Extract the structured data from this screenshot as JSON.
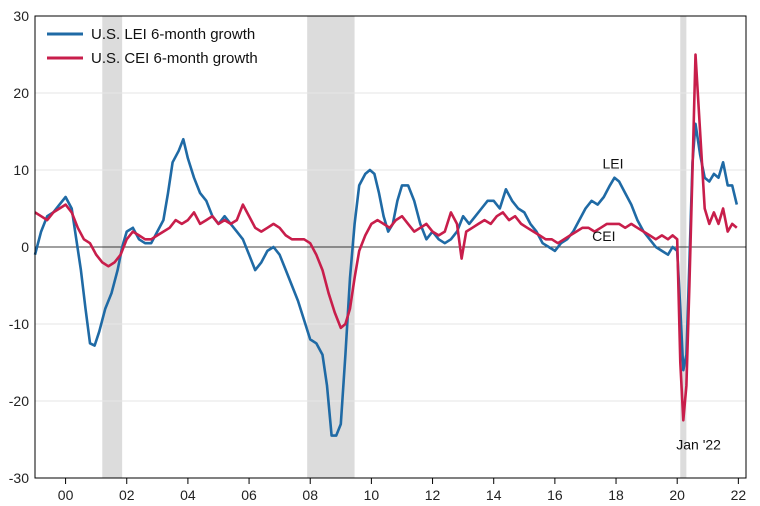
{
  "chart_data": {
    "type": "line",
    "title": "",
    "xlabel": "",
    "ylabel": "",
    "ylim": [
      -30,
      30
    ],
    "xlim": [
      1999.0,
      2022.25
    ],
    "y_ticks": [
      -30,
      -20,
      -10,
      0,
      10,
      20,
      30
    ],
    "y_tick_labels": [
      "-30",
      "-20",
      "-10",
      "0",
      "10",
      "20",
      "30"
    ],
    "x_ticks": [
      2000,
      2002,
      2004,
      2006,
      2008,
      2010,
      2012,
      2014,
      2016,
      2018,
      2020,
      2022
    ],
    "x_tick_labels": [
      "00",
      "02",
      "04",
      "06",
      "08",
      "10",
      "12",
      "14",
      "16",
      "18",
      "20",
      "22"
    ],
    "grid": "horizontal",
    "legend_position": "top-left",
    "recessions": [
      [
        2001.2,
        2001.85
      ],
      [
        2007.9,
        2009.45
      ],
      [
        2020.1,
        2020.3
      ]
    ],
    "series": [
      {
        "name": "U.S. LEI 6-month growth",
        "color": "#1f6aa5",
        "label": "LEI",
        "points": [
          [
            1999.0,
            -1.0
          ],
          [
            1999.2,
            2.0
          ],
          [
            1999.4,
            4.0
          ],
          [
            1999.6,
            4.5
          ],
          [
            1999.8,
            5.5
          ],
          [
            2000.0,
            6.5
          ],
          [
            2000.2,
            5.0
          ],
          [
            2000.35,
            1.0
          ],
          [
            2000.5,
            -3.0
          ],
          [
            2000.65,
            -8.0
          ],
          [
            2000.8,
            -12.5
          ],
          [
            2000.95,
            -12.8
          ],
          [
            2001.1,
            -11.0
          ],
          [
            2001.3,
            -8.0
          ],
          [
            2001.5,
            -6.0
          ],
          [
            2001.7,
            -3.0
          ],
          [
            2001.85,
            0.0
          ],
          [
            2002.0,
            2.0
          ],
          [
            2002.2,
            2.5
          ],
          [
            2002.4,
            1.0
          ],
          [
            2002.6,
            0.5
          ],
          [
            2002.8,
            0.5
          ],
          [
            2003.0,
            2.0
          ],
          [
            2003.2,
            3.5
          ],
          [
            2003.35,
            7.0
          ],
          [
            2003.5,
            11.0
          ],
          [
            2003.7,
            12.5
          ],
          [
            2003.85,
            14.0
          ],
          [
            2004.0,
            11.5
          ],
          [
            2004.2,
            9.0
          ],
          [
            2004.4,
            7.0
          ],
          [
            2004.6,
            6.0
          ],
          [
            2004.8,
            4.0
          ],
          [
            2005.0,
            3.0
          ],
          [
            2005.2,
            4.0
          ],
          [
            2005.4,
            3.0
          ],
          [
            2005.6,
            2.0
          ],
          [
            2005.8,
            1.0
          ],
          [
            2006.0,
            -1.0
          ],
          [
            2006.2,
            -3.0
          ],
          [
            2006.4,
            -2.0
          ],
          [
            2006.6,
            -0.5
          ],
          [
            2006.8,
            0.0
          ],
          [
            2007.0,
            -1.0
          ],
          [
            2007.2,
            -3.0
          ],
          [
            2007.4,
            -5.0
          ],
          [
            2007.6,
            -7.0
          ],
          [
            2007.8,
            -9.5
          ],
          [
            2008.0,
            -12.0
          ],
          [
            2008.2,
            -12.5
          ],
          [
            2008.4,
            -14.0
          ],
          [
            2008.55,
            -18.0
          ],
          [
            2008.7,
            -24.5
          ],
          [
            2008.85,
            -24.5
          ],
          [
            2009.0,
            -23.0
          ],
          [
            2009.15,
            -14.0
          ],
          [
            2009.3,
            -4.0
          ],
          [
            2009.45,
            3.0
          ],
          [
            2009.6,
            8.0
          ],
          [
            2009.8,
            9.5
          ],
          [
            2009.95,
            10.0
          ],
          [
            2010.1,
            9.5
          ],
          [
            2010.25,
            7.0
          ],
          [
            2010.4,
            4.0
          ],
          [
            2010.55,
            2.0
          ],
          [
            2010.7,
            3.0
          ],
          [
            2010.85,
            6.0
          ],
          [
            2011.0,
            8.0
          ],
          [
            2011.2,
            8.0
          ],
          [
            2011.4,
            6.0
          ],
          [
            2011.6,
            3.0
          ],
          [
            2011.8,
            1.0
          ],
          [
            2012.0,
            2.0
          ],
          [
            2012.2,
            1.0
          ],
          [
            2012.4,
            0.5
          ],
          [
            2012.6,
            1.0
          ],
          [
            2012.8,
            2.0
          ],
          [
            2013.0,
            4.0
          ],
          [
            2013.2,
            3.0
          ],
          [
            2013.4,
            4.0
          ],
          [
            2013.6,
            5.0
          ],
          [
            2013.8,
            6.0
          ],
          [
            2014.0,
            6.0
          ],
          [
            2014.2,
            5.0
          ],
          [
            2014.4,
            7.5
          ],
          [
            2014.6,
            6.0
          ],
          [
            2014.8,
            5.0
          ],
          [
            2015.0,
            4.5
          ],
          [
            2015.2,
            3.0
          ],
          [
            2015.4,
            2.0
          ],
          [
            2015.6,
            0.5
          ],
          [
            2015.8,
            0.0
          ],
          [
            2016.0,
            -0.5
          ],
          [
            2016.2,
            0.5
          ],
          [
            2016.4,
            1.0
          ],
          [
            2016.6,
            2.0
          ],
          [
            2016.8,
            3.5
          ],
          [
            2017.0,
            5.0
          ],
          [
            2017.2,
            6.0
          ],
          [
            2017.4,
            5.5
          ],
          [
            2017.6,
            6.5
          ],
          [
            2017.8,
            8.0
          ],
          [
            2017.95,
            9.0
          ],
          [
            2018.1,
            8.5
          ],
          [
            2018.3,
            7.0
          ],
          [
            2018.5,
            5.5
          ],
          [
            2018.7,
            3.5
          ],
          [
            2018.9,
            2.0
          ],
          [
            2019.1,
            1.0
          ],
          [
            2019.3,
            0.0
          ],
          [
            2019.5,
            -0.5
          ],
          [
            2019.7,
            -1.0
          ],
          [
            2019.85,
            0.0
          ],
          [
            2020.0,
            -0.5
          ],
          [
            2020.1,
            -8.0
          ],
          [
            2020.2,
            -16.0
          ],
          [
            2020.3,
            -14.0
          ],
          [
            2020.4,
            -2.0
          ],
          [
            2020.5,
            11.0
          ],
          [
            2020.6,
            16.0
          ],
          [
            2020.75,
            12.0
          ],
          [
            2020.9,
            9.0
          ],
          [
            2021.05,
            8.5
          ],
          [
            2021.2,
            9.5
          ],
          [
            2021.35,
            9.0
          ],
          [
            2021.5,
            11.0
          ],
          [
            2021.65,
            8.0
          ],
          [
            2021.8,
            8.0
          ],
          [
            2021.95,
            5.5
          ]
        ]
      },
      {
        "name": "U.S. CEI 6-month growth",
        "color": "#c81e4b",
        "label": "CEI",
        "points": [
          [
            1999.0,
            4.5
          ],
          [
            1999.2,
            4.0
          ],
          [
            1999.4,
            3.5
          ],
          [
            1999.6,
            4.5
          ],
          [
            1999.8,
            5.0
          ],
          [
            2000.0,
            5.5
          ],
          [
            2000.2,
            4.5
          ],
          [
            2000.4,
            2.5
          ],
          [
            2000.6,
            1.0
          ],
          [
            2000.8,
            0.5
          ],
          [
            2001.0,
            -1.0
          ],
          [
            2001.2,
            -2.0
          ],
          [
            2001.4,
            -2.5
          ],
          [
            2001.6,
            -2.0
          ],
          [
            2001.8,
            -1.0
          ],
          [
            2002.0,
            1.0
          ],
          [
            2002.2,
            2.0
          ],
          [
            2002.4,
            1.5
          ],
          [
            2002.6,
            1.0
          ],
          [
            2002.8,
            1.0
          ],
          [
            2003.0,
            1.5
          ],
          [
            2003.2,
            2.0
          ],
          [
            2003.4,
            2.5
          ],
          [
            2003.6,
            3.5
          ],
          [
            2003.8,
            3.0
          ],
          [
            2004.0,
            3.5
          ],
          [
            2004.2,
            4.5
          ],
          [
            2004.4,
            3.0
          ],
          [
            2004.6,
            3.5
          ],
          [
            2004.8,
            4.0
          ],
          [
            2005.0,
            3.0
          ],
          [
            2005.2,
            3.5
          ],
          [
            2005.4,
            3.0
          ],
          [
            2005.6,
            3.5
          ],
          [
            2005.8,
            5.5
          ],
          [
            2006.0,
            4.0
          ],
          [
            2006.2,
            2.5
          ],
          [
            2006.4,
            2.0
          ],
          [
            2006.6,
            2.5
          ],
          [
            2006.8,
            3.0
          ],
          [
            2007.0,
            2.5
          ],
          [
            2007.2,
            1.5
          ],
          [
            2007.4,
            1.0
          ],
          [
            2007.6,
            1.0
          ],
          [
            2007.8,
            1.0
          ],
          [
            2008.0,
            0.5
          ],
          [
            2008.2,
            -1.0
          ],
          [
            2008.4,
            -3.0
          ],
          [
            2008.6,
            -6.0
          ],
          [
            2008.8,
            -8.5
          ],
          [
            2009.0,
            -10.5
          ],
          [
            2009.15,
            -10.0
          ],
          [
            2009.3,
            -8.0
          ],
          [
            2009.45,
            -4.0
          ],
          [
            2009.6,
            -0.5
          ],
          [
            2009.8,
            1.5
          ],
          [
            2010.0,
            3.0
          ],
          [
            2010.2,
            3.5
          ],
          [
            2010.4,
            3.0
          ],
          [
            2010.6,
            2.5
          ],
          [
            2010.8,
            3.5
          ],
          [
            2011.0,
            4.0
          ],
          [
            2011.2,
            3.0
          ],
          [
            2011.4,
            2.0
          ],
          [
            2011.6,
            2.5
          ],
          [
            2011.8,
            3.0
          ],
          [
            2012.0,
            2.0
          ],
          [
            2012.2,
            1.5
          ],
          [
            2012.4,
            2.0
          ],
          [
            2012.6,
            4.5
          ],
          [
            2012.8,
            3.0
          ],
          [
            2012.95,
            -1.5
          ],
          [
            2013.1,
            2.0
          ],
          [
            2013.3,
            2.5
          ],
          [
            2013.5,
            3.0
          ],
          [
            2013.7,
            3.5
          ],
          [
            2013.9,
            3.0
          ],
          [
            2014.1,
            4.0
          ],
          [
            2014.3,
            4.5
          ],
          [
            2014.5,
            3.5
          ],
          [
            2014.7,
            4.0
          ],
          [
            2014.9,
            3.0
          ],
          [
            2015.1,
            2.5
          ],
          [
            2015.3,
            2.0
          ],
          [
            2015.5,
            1.5
          ],
          [
            2015.7,
            1.0
          ],
          [
            2015.9,
            1.0
          ],
          [
            2016.1,
            0.5
          ],
          [
            2016.3,
            1.0
          ],
          [
            2016.5,
            1.5
          ],
          [
            2016.7,
            2.0
          ],
          [
            2016.9,
            2.5
          ],
          [
            2017.1,
            2.5
          ],
          [
            2017.3,
            2.0
          ],
          [
            2017.5,
            2.5
          ],
          [
            2017.7,
            3.0
          ],
          [
            2017.9,
            3.0
          ],
          [
            2018.1,
            3.0
          ],
          [
            2018.3,
            2.5
          ],
          [
            2018.5,
            3.0
          ],
          [
            2018.7,
            2.5
          ],
          [
            2018.9,
            2.0
          ],
          [
            2019.1,
            1.5
          ],
          [
            2019.3,
            1.0
          ],
          [
            2019.5,
            1.5
          ],
          [
            2019.7,
            1.0
          ],
          [
            2019.85,
            1.5
          ],
          [
            2020.0,
            1.0
          ],
          [
            2020.1,
            -15.0
          ],
          [
            2020.2,
            -22.5
          ],
          [
            2020.3,
            -18.0
          ],
          [
            2020.4,
            -5.0
          ],
          [
            2020.5,
            10.0
          ],
          [
            2020.6,
            25.0
          ],
          [
            2020.75,
            15.0
          ],
          [
            2020.9,
            5.0
          ],
          [
            2021.05,
            3.0
          ],
          [
            2021.2,
            4.5
          ],
          [
            2021.35,
            3.0
          ],
          [
            2021.5,
            5.0
          ],
          [
            2021.65,
            2.0
          ],
          [
            2021.8,
            3.0
          ],
          [
            2021.95,
            2.5
          ]
        ]
      }
    ],
    "annotations": [
      {
        "text": "LEI",
        "x": 2017.9,
        "y": 10.2
      },
      {
        "text": "CEI",
        "x": 2017.6,
        "y": 0.8
      },
      {
        "text": "Jan '22",
        "x": 2020.7,
        "y": -26.3
      }
    ]
  }
}
